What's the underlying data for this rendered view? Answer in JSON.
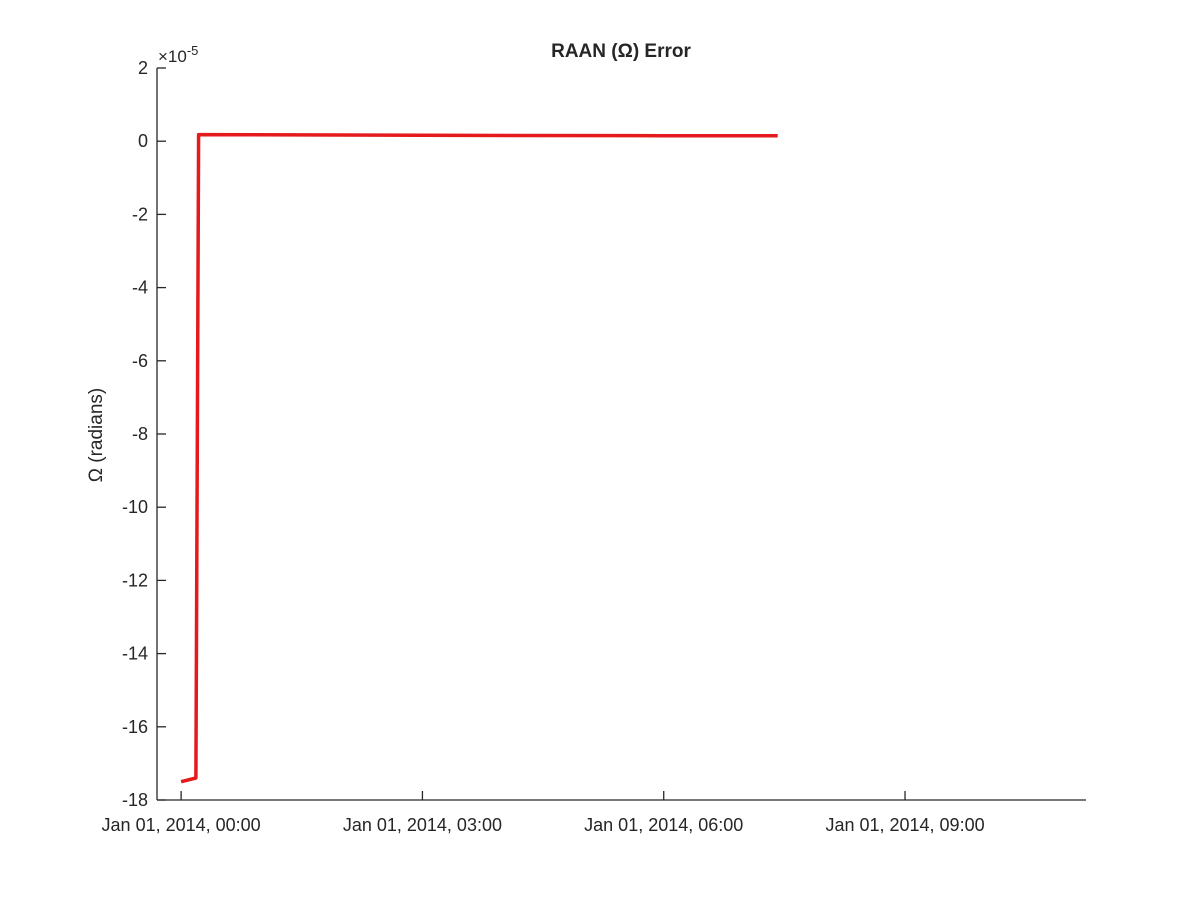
{
  "chart_data": {
    "type": "line",
    "title": "RAAN (Ω) Error",
    "ylabel": "Ω (radians)",
    "xlabel": "",
    "y_exponent_label": "×10",
    "y_exponent_power": "-5",
    "y_multiplier": 1e-05,
    "ylim": [
      -18,
      2
    ],
    "yticks": [
      2,
      0,
      -2,
      -4,
      -6,
      -8,
      -10,
      -12,
      -14,
      -16,
      -18
    ],
    "ytick_labels": [
      "2",
      "0",
      "-2",
      "-4",
      "-6",
      "-8",
      "-10",
      "-12",
      "-14",
      "-16",
      "-18"
    ],
    "xlim": [
      "2013-12-31T23:42",
      "2014-01-01T11:15"
    ],
    "xticks": [
      "2014-01-01T00:00",
      "2014-01-01T03:00",
      "2014-01-01T06:00",
      "2014-01-01T09:00"
    ],
    "xtick_labels": [
      "Jan 01, 2014, 00:00",
      "Jan 01, 2014, 03:00",
      "Jan 01, 2014, 06:00",
      "Jan 01, 2014, 09:00"
    ],
    "grid": false,
    "series": [
      {
        "color": "#e41a1c",
        "x": [
          "2014-01-01T00:00",
          "2014-01-01T00:11",
          "2014-01-01T00:13",
          "2014-01-01T03:00",
          "2014-01-01T06:00",
          "2014-01-01T07:25"
        ],
        "y": [
          -17.5,
          -17.4,
          0.18,
          0.16,
          0.15,
          0.15
        ]
      }
    ]
  }
}
